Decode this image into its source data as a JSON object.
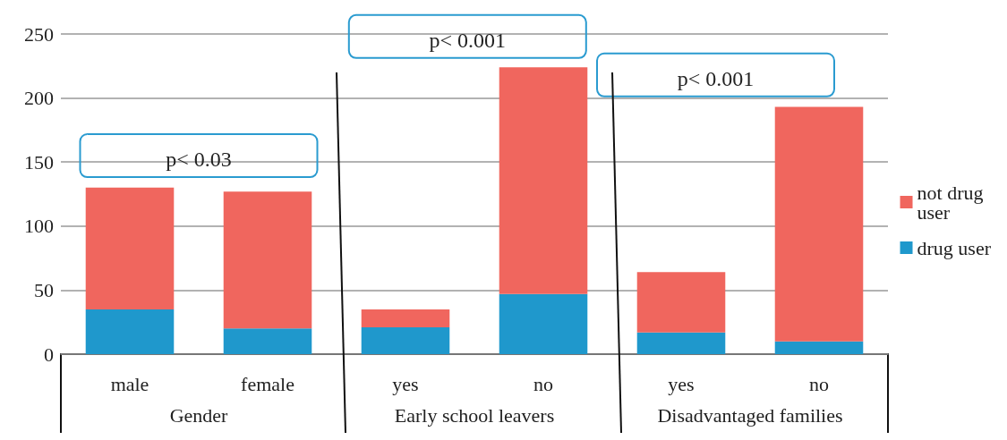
{
  "chart_data": {
    "type": "bar",
    "stacked": true,
    "categories": [
      "male",
      "female",
      "yes",
      "no",
      "yes",
      "no"
    ],
    "series": [
      {
        "name": "drug user",
        "color": "#1f98cc",
        "values": [
          35,
          20,
          21,
          47,
          17,
          10
        ]
      },
      {
        "name": "not drug user",
        "color": "#f0665e",
        "values": [
          95,
          107,
          14,
          177,
          47,
          183
        ]
      }
    ],
    "ylim": [
      0,
      250
    ],
    "yticks": [
      0,
      50,
      100,
      150,
      200,
      250
    ],
    "grid": "y",
    "legend": "right",
    "annotations": [
      "p< 0.03",
      "p< 0.001",
      "p< 0.001",
      "Gender",
      "Early school leavers",
      "Disadvantaged families"
    ]
  }
}
